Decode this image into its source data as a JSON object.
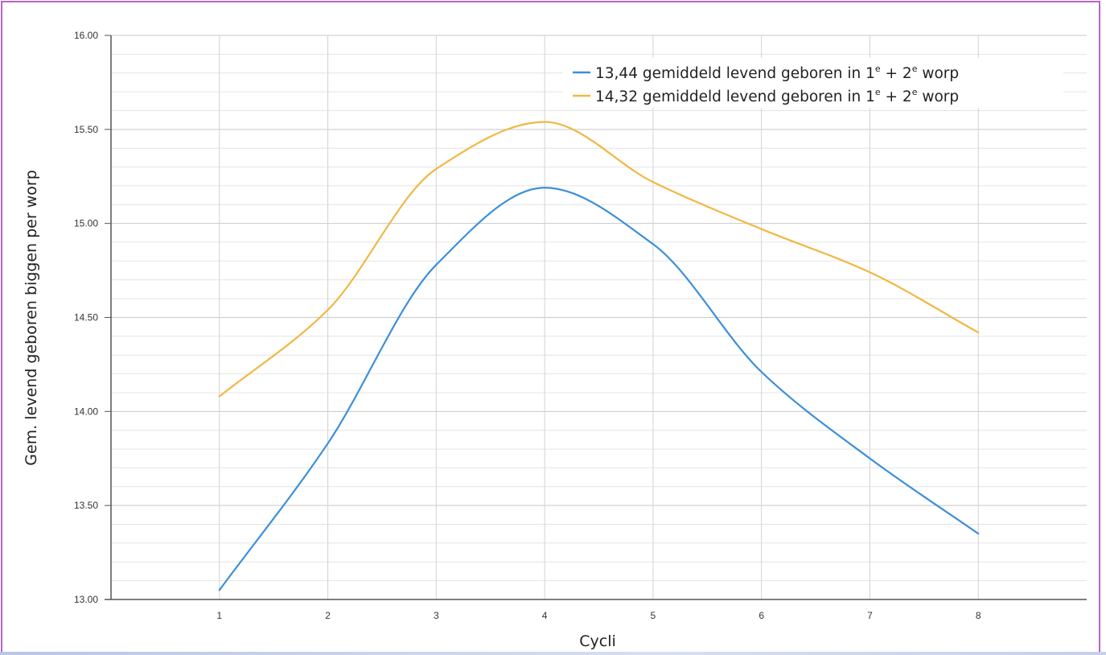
{
  "chart_data": {
    "type": "line",
    "xlabel": "Cycli",
    "ylabel": "Gem. levend geboren biggen per worp",
    "x": [
      1,
      2,
      3,
      4,
      5,
      6,
      7,
      8
    ],
    "x_ticks": [
      "1",
      "2",
      "3",
      "4",
      "5",
      "6",
      "7",
      "8"
    ],
    "xlim": [
      0,
      9
    ],
    "ylim": [
      13.0,
      16.0
    ],
    "y_ticks": [
      "13.00",
      "13.50",
      "14.00",
      "14.50",
      "15.00",
      "15.50",
      "16.00"
    ],
    "grid": true,
    "legend_position": "top-right",
    "series": [
      {
        "name": "13,44 gemiddeld levend geboren in 1e + 2e worp",
        "legend": {
          "a": "13,44 gemiddeld levend geboren in 1",
          "b": " + 2",
          "c": " worp",
          "sup": "e"
        },
        "color": "#3c8fd8",
        "values": [
          13.05,
          13.83,
          14.78,
          15.19,
          14.89,
          14.21,
          13.75,
          13.35
        ]
      },
      {
        "name": "14,32 gemiddeld levend geboren in 1e + 2e worp",
        "legend": {
          "a": "14,32 gemiddeld levend geboren in 1",
          "b": " + 2",
          "c": " worp",
          "sup": "e"
        },
        "color": "#f0b844",
        "values": [
          14.08,
          14.54,
          15.29,
          15.54,
          15.22,
          14.97,
          14.74,
          14.42
        ]
      }
    ]
  }
}
